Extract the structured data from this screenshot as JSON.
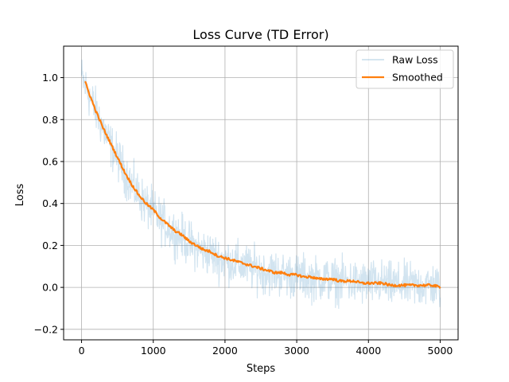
{
  "chart_data": {
    "type": "line",
    "title": "Loss Curve (TD Error)",
    "xlabel": "Steps",
    "ylabel": "Loss",
    "xlim": [
      -250,
      5250
    ],
    "ylim": [
      -0.25,
      1.15
    ],
    "xticks": [
      0,
      1000,
      2000,
      3000,
      4000,
      5000
    ],
    "yticks": [
      -0.2,
      0.0,
      0.2,
      0.4,
      0.6,
      0.8,
      1.0
    ],
    "xtick_labels": [
      "0",
      "1000",
      "2000",
      "3000",
      "4000",
      "5000"
    ],
    "ytick_labels": [
      "−0.2",
      "0.0",
      "0.2",
      "0.4",
      "0.6",
      "0.8",
      "1.0"
    ],
    "grid": true,
    "legend_position": "top-right",
    "series": [
      {
        "name": "Raw Loss",
        "color": "#1f77b4",
        "opacity": 0.2,
        "x": [
          0,
          100,
          200,
          300,
          400,
          500,
          600,
          700,
          800,
          900,
          1000,
          1100,
          1200,
          1300,
          1400,
          1500,
          1600,
          1700,
          1800,
          1900,
          2000,
          2100,
          2200,
          2300,
          2400,
          2500,
          2600,
          2700,
          2800,
          2900,
          3000,
          3100,
          3200,
          3300,
          3400,
          3500,
          3600,
          3700,
          3800,
          3900,
          4000,
          4100,
          4200,
          4300,
          4400,
          4500,
          4600,
          4700,
          4800,
          4900,
          5000
        ],
        "y": [
          1.0,
          0.92,
          0.84,
          0.76,
          0.68,
          0.62,
          0.55,
          0.49,
          0.44,
          0.39,
          0.36,
          0.32,
          0.29,
          0.26,
          0.24,
          0.21,
          0.19,
          0.17,
          0.16,
          0.14,
          0.13,
          0.12,
          0.11,
          0.1,
          0.09,
          0.08,
          0.07,
          0.07,
          0.06,
          0.06,
          0.05,
          0.05,
          0.04,
          0.04,
          0.04,
          0.03,
          0.03,
          0.03,
          0.02,
          0.02,
          0.02,
          0.02,
          0.02,
          0.01,
          0.01,
          0.01,
          0.01,
          0.01,
          0.01,
          0.01,
          0.0
        ],
        "noise_amplitude": 0.08
      },
      {
        "name": "Smoothed",
        "color": "#ff7f0e",
        "x": [
          50,
          100,
          200,
          300,
          400,
          500,
          600,
          700,
          800,
          900,
          1000,
          1100,
          1200,
          1300,
          1400,
          1500,
          1600,
          1700,
          1800,
          1900,
          2000,
          2100,
          2200,
          2300,
          2400,
          2500,
          2600,
          2700,
          2800,
          2900,
          3000,
          3100,
          3200,
          3300,
          3400,
          3500,
          3600,
          3700,
          3800,
          3900,
          4000,
          4100,
          4200,
          4300,
          4400,
          4500,
          4600,
          4700,
          4800,
          4900,
          5000
        ],
        "y": [
          0.98,
          0.93,
          0.84,
          0.76,
          0.69,
          0.62,
          0.55,
          0.49,
          0.44,
          0.4,
          0.37,
          0.33,
          0.3,
          0.27,
          0.25,
          0.22,
          0.2,
          0.18,
          0.17,
          0.15,
          0.14,
          0.13,
          0.12,
          0.11,
          0.1,
          0.09,
          0.08,
          0.07,
          0.07,
          0.06,
          0.06,
          0.05,
          0.05,
          0.04,
          0.04,
          0.04,
          0.03,
          0.03,
          0.03,
          0.02,
          0.02,
          0.02,
          0.02,
          0.01,
          0.01,
          0.01,
          0.01,
          0.01,
          0.01,
          0.01,
          0.0
        ]
      }
    ]
  },
  "axis_color": "#000000",
  "grid_color": "#b0b0b0"
}
